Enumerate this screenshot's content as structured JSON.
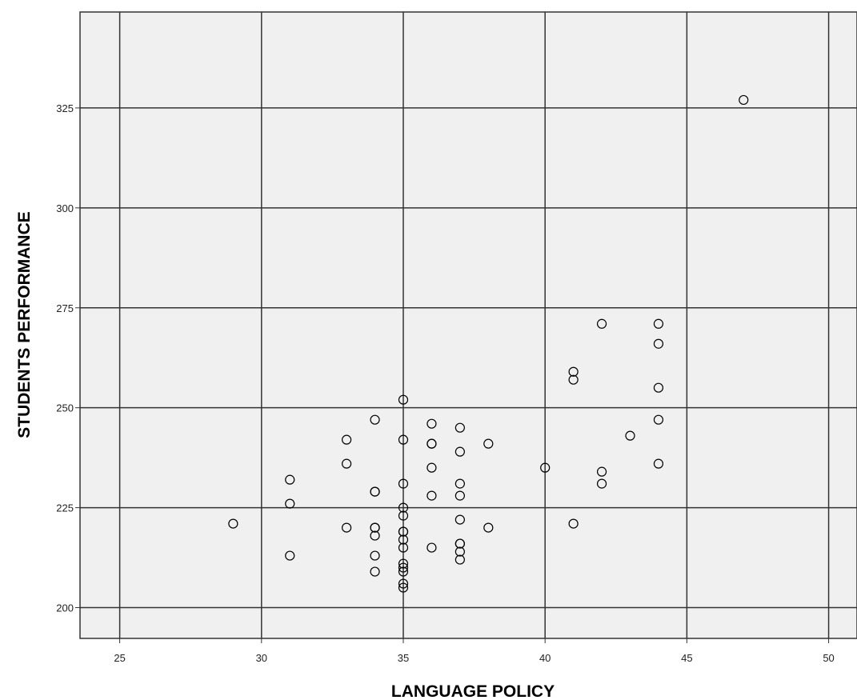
{
  "chart_data": {
    "type": "scatter",
    "title": "",
    "xlabel": "LANGUAGE POLICY",
    "ylabel": "STUDENTS PERFORMANCE",
    "xlim": [
      23.6,
      51.0
    ],
    "ylim": [
      192.3,
      349.0
    ],
    "xticks": [
      25,
      30,
      35,
      40,
      45,
      50
    ],
    "yticks": [
      200,
      225,
      250,
      275,
      300,
      325
    ],
    "grid": true,
    "legend": "none",
    "colors": {
      "plot_bg": "#f0f0f0",
      "grid": "#333333",
      "marker": "#000000"
    },
    "points": [
      {
        "x": 29,
        "y": 221
      },
      {
        "x": 31,
        "y": 232
      },
      {
        "x": 31,
        "y": 226
      },
      {
        "x": 31,
        "y": 213
      },
      {
        "x": 33,
        "y": 242
      },
      {
        "x": 33,
        "y": 236
      },
      {
        "x": 33,
        "y": 220
      },
      {
        "x": 34,
        "y": 247
      },
      {
        "x": 34,
        "y": 229
      },
      {
        "x": 34,
        "y": 229
      },
      {
        "x": 34,
        "y": 220
      },
      {
        "x": 34,
        "y": 220
      },
      {
        "x": 34,
        "y": 218
      },
      {
        "x": 34,
        "y": 213
      },
      {
        "x": 34,
        "y": 209
      },
      {
        "x": 35,
        "y": 252
      },
      {
        "x": 35,
        "y": 242
      },
      {
        "x": 35,
        "y": 231
      },
      {
        "x": 35,
        "y": 225
      },
      {
        "x": 35,
        "y": 223
      },
      {
        "x": 35,
        "y": 219
      },
      {
        "x": 35,
        "y": 219
      },
      {
        "x": 35,
        "y": 217
      },
      {
        "x": 35,
        "y": 215
      },
      {
        "x": 35,
        "y": 211
      },
      {
        "x": 35,
        "y": 210
      },
      {
        "x": 35,
        "y": 209
      },
      {
        "x": 35,
        "y": 206
      },
      {
        "x": 35,
        "y": 205
      },
      {
        "x": 36,
        "y": 246
      },
      {
        "x": 36,
        "y": 241
      },
      {
        "x": 36,
        "y": 241
      },
      {
        "x": 36,
        "y": 235
      },
      {
        "x": 36,
        "y": 228
      },
      {
        "x": 36,
        "y": 215
      },
      {
        "x": 37,
        "y": 245
      },
      {
        "x": 37,
        "y": 239
      },
      {
        "x": 37,
        "y": 231
      },
      {
        "x": 37,
        "y": 228
      },
      {
        "x": 37,
        "y": 222
      },
      {
        "x": 37,
        "y": 216
      },
      {
        "x": 37,
        "y": 216
      },
      {
        "x": 37,
        "y": 214
      },
      {
        "x": 37,
        "y": 212
      },
      {
        "x": 38,
        "y": 241
      },
      {
        "x": 38,
        "y": 220
      },
      {
        "x": 40,
        "y": 235
      },
      {
        "x": 41,
        "y": 259
      },
      {
        "x": 41,
        "y": 257
      },
      {
        "x": 41,
        "y": 221
      },
      {
        "x": 42,
        "y": 271
      },
      {
        "x": 42,
        "y": 234
      },
      {
        "x": 42,
        "y": 231
      },
      {
        "x": 43,
        "y": 243
      },
      {
        "x": 44,
        "y": 271
      },
      {
        "x": 44,
        "y": 266
      },
      {
        "x": 44,
        "y": 255
      },
      {
        "x": 44,
        "y": 247
      },
      {
        "x": 44,
        "y": 236
      },
      {
        "x": 47,
        "y": 327
      }
    ]
  }
}
